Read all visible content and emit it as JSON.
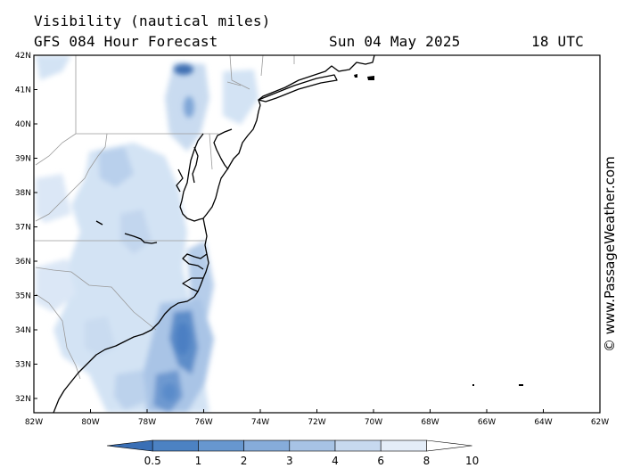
{
  "header": {
    "title": "Visibility (nautical miles)",
    "model": "GFS 084 Hour Forecast",
    "date": "Sun 04 May 2025",
    "time": "18 UTC"
  },
  "credit": "© www.PassageWeather.com",
  "lat_labels": [
    "42N",
    "41N",
    "40N",
    "39N",
    "38N",
    "37N",
    "36N",
    "35N",
    "34N",
    "33N",
    "32N"
  ],
  "lon_labels": [
    "82W",
    "80W",
    "78W",
    "76W",
    "74W",
    "72W",
    "70W",
    "68W",
    "66W",
    "64W",
    "62W"
  ],
  "colorbar": {
    "labels": [
      "0.5",
      "1",
      "2",
      "3",
      "4",
      "6",
      "8",
      "10"
    ],
    "colors": [
      "#3a6fb5",
      "#4c82c3",
      "#6797cf",
      "#86acda",
      "#a7c3e5",
      "#c7d9ef",
      "#e4edf8",
      "#ffffff"
    ]
  },
  "colors": {
    "land_outline": "#000000",
    "state_border": "#9a9a9a",
    "low_vis": "#4e80c0",
    "mid_vis": "#9dbde3",
    "light_vis": "#d3e3f4"
  }
}
